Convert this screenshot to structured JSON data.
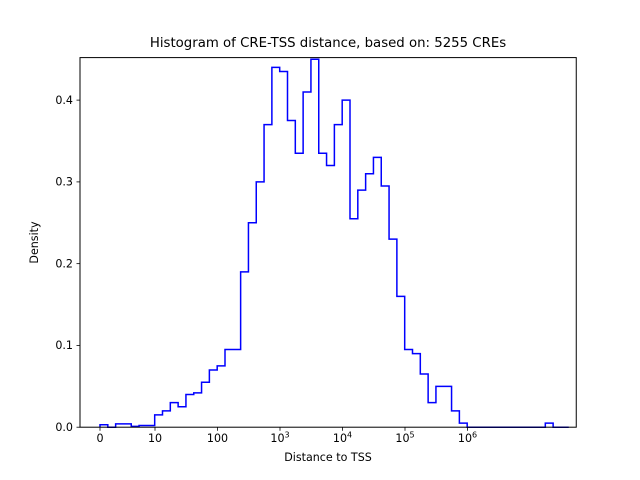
{
  "figure": {
    "background_color": "#ffffff",
    "axis_color": "#000000",
    "line_color": "#0000ff"
  },
  "chart_data": {
    "type": "line",
    "style": "step-histogram",
    "title": "Histogram of CRE-TSS distance, based on: 5255 CREs",
    "xlabel": "Distance to TSS",
    "ylabel": "Density",
    "x_scale": "symlog",
    "grid": false,
    "legend": "none",
    "xlim": [
      -0.32,
      7.62
    ],
    "ylim": [
      0,
      0.452
    ],
    "x_ticks": [
      {
        "pos": 0.0,
        "label": "0"
      },
      {
        "pos": 0.88,
        "label": "10"
      },
      {
        "pos": 1.88,
        "label": "100"
      },
      {
        "pos": 2.88,
        "label": "10^3"
      },
      {
        "pos": 3.88,
        "label": "10^4"
      },
      {
        "pos": 4.88,
        "label": "10^5"
      },
      {
        "pos": 5.88,
        "label": "10^6"
      }
    ],
    "y_ticks": [
      0.0,
      0.1,
      0.2,
      0.3,
      0.4
    ],
    "bins": {
      "note": "x positions are in log10-like axis units matching x_ticks positions",
      "start": 0.0,
      "width": 0.125,
      "densities": [
        0.003,
        0.0,
        0.004,
        0.004,
        0.001,
        0.002,
        0.002,
        0.015,
        0.02,
        0.03,
        0.025,
        0.04,
        0.042,
        0.055,
        0.07,
        0.075,
        0.095,
        0.095,
        0.19,
        0.25,
        0.3,
        0.37,
        0.44,
        0.435,
        0.375,
        0.335,
        0.41,
        0.45,
        0.335,
        0.32,
        0.37,
        0.4,
        0.255,
        0.29,
        0.31,
        0.33,
        0.295,
        0.23,
        0.16,
        0.095,
        0.09,
        0.065,
        0.03,
        0.05,
        0.05,
        0.02,
        0.005,
        0.0,
        0.0,
        0.0,
        0.0,
        0.0,
        0.0,
        0.0,
        0.0,
        0.0,
        0.0,
        0.005,
        0.0,
        0.0
      ]
    },
    "series_color": "#0000ff"
  }
}
